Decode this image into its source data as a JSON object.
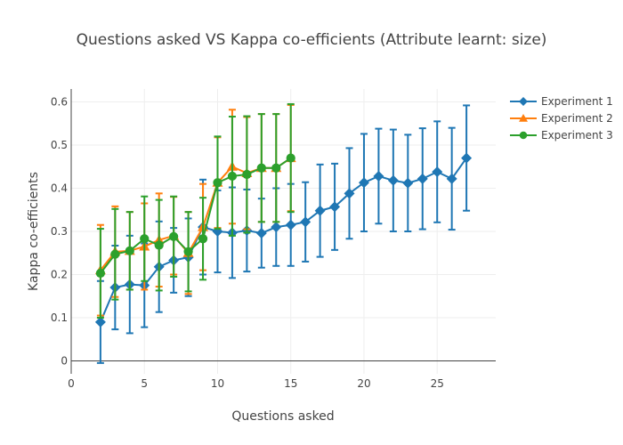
{
  "chart_data": {
    "type": "line",
    "title": "Questions asked VS Kappa co-efficients (Attribute learnt: size)",
    "xlabel": "Questions asked",
    "ylabel": "Kappa co-efficients",
    "xlim": [
      0,
      29
    ],
    "ylim": [
      -0.03,
      0.63
    ],
    "xticks": [
      0,
      5,
      10,
      15,
      20,
      25
    ],
    "yticks": [
      0,
      0.1,
      0.2,
      0.3,
      0.4,
      0.5,
      0.6
    ],
    "grid": true,
    "legend_position": "top-right",
    "series": [
      {
        "name": "Experiment 1",
        "color": "#1f77b4",
        "marker": "diamond",
        "x": [
          2,
          3,
          4,
          5,
          6,
          7,
          8,
          9,
          10,
          11,
          12,
          13,
          14,
          15,
          16,
          17,
          18,
          19,
          20,
          21,
          22,
          23,
          24,
          25,
          26,
          27
        ],
        "y": [
          0.09,
          0.17,
          0.177,
          0.175,
          0.218,
          0.233,
          0.24,
          0.31,
          0.3,
          0.297,
          0.302,
          0.296,
          0.31,
          0.315,
          0.322,
          0.348,
          0.357,
          0.388,
          0.413,
          0.428,
          0.418,
          0.412,
          0.422,
          0.438,
          0.422,
          0.47
        ],
        "err": [
          0.095,
          0.097,
          0.113,
          0.097,
          0.105,
          0.075,
          0.09,
          0.11,
          0.095,
          0.105,
          0.095,
          0.08,
          0.09,
          0.095,
          0.092,
          0.107,
          0.1,
          0.105,
          0.113,
          0.11,
          0.118,
          0.112,
          0.117,
          0.117,
          0.118,
          0.122
        ]
      },
      {
        "name": "Experiment 2",
        "color": "#ff7f0e",
        "marker": "triangle",
        "x": [
          2,
          3,
          4,
          5,
          6,
          7,
          8,
          9,
          10,
          11,
          12,
          13,
          14,
          15
        ],
        "y": [
          0.21,
          0.253,
          0.255,
          0.265,
          0.28,
          0.29,
          0.25,
          0.31,
          0.413,
          0.45,
          0.435,
          0.447,
          0.447,
          0.47
        ],
        "err": [
          0.105,
          0.105,
          0.09,
          0.1,
          0.108,
          0.09,
          0.095,
          0.1,
          0.105,
          0.132,
          0.13,
          0.125,
          0.125,
          0.123
        ]
      },
      {
        "name": "Experiment 3",
        "color": "#2ca02c",
        "marker": "circle",
        "x": [
          2,
          3,
          4,
          5,
          6,
          7,
          8,
          9,
          10,
          11,
          12,
          13,
          14,
          15
        ],
        "y": [
          0.203,
          0.247,
          0.255,
          0.283,
          0.268,
          0.288,
          0.253,
          0.283,
          0.413,
          0.428,
          0.432,
          0.447,
          0.447,
          0.47
        ],
        "err": [
          0.103,
          0.105,
          0.09,
          0.098,
          0.105,
          0.093,
          0.092,
          0.095,
          0.107,
          0.138,
          0.135,
          0.125,
          0.125,
          0.125
        ]
      }
    ]
  }
}
